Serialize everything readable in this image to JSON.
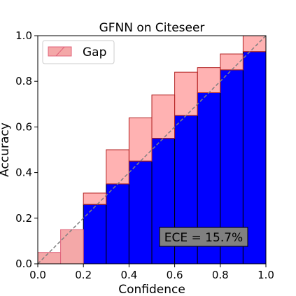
{
  "chart_data": {
    "type": "bar",
    "title": "GFNN on Citeseer",
    "xlabel": "Confidence",
    "ylabel": "Accuracy",
    "xlim": [
      0.0,
      1.0
    ],
    "ylim": [
      0.0,
      1.0
    ],
    "xticks": [
      "0.0",
      "0.2",
      "0.4",
      "0.6",
      "0.8",
      "1.0"
    ],
    "yticks": [
      "0.0",
      "0.2",
      "0.4",
      "0.6",
      "0.8",
      "1.0"
    ],
    "grid": false,
    "legend": {
      "position": "top-left",
      "entries": [
        "Gap"
      ]
    },
    "bin_edges": [
      0.0,
      0.1,
      0.2,
      0.3,
      0.4,
      0.5,
      0.6,
      0.7,
      0.8,
      0.9,
      1.0
    ],
    "outputs": [
      0,
      0,
      0.26,
      0.35,
      0.45,
      0.55,
      0.65,
      0.75,
      0.85,
      0.93
    ],
    "expected": [
      0.05,
      0.15,
      0.31,
      0.5,
      0.64,
      0.74,
      0.84,
      0.86,
      0.92,
      1.0
    ],
    "annotation": "ECE = 15.7%",
    "colors": {
      "outputs_fill": "#0000ff",
      "gap_fill": "#ff0000",
      "gap_edge": "#b22222",
      "diagonal": "#808080",
      "annotation_bg": "#808080",
      "empty_gap_fill": "#f4a8a8"
    }
  }
}
